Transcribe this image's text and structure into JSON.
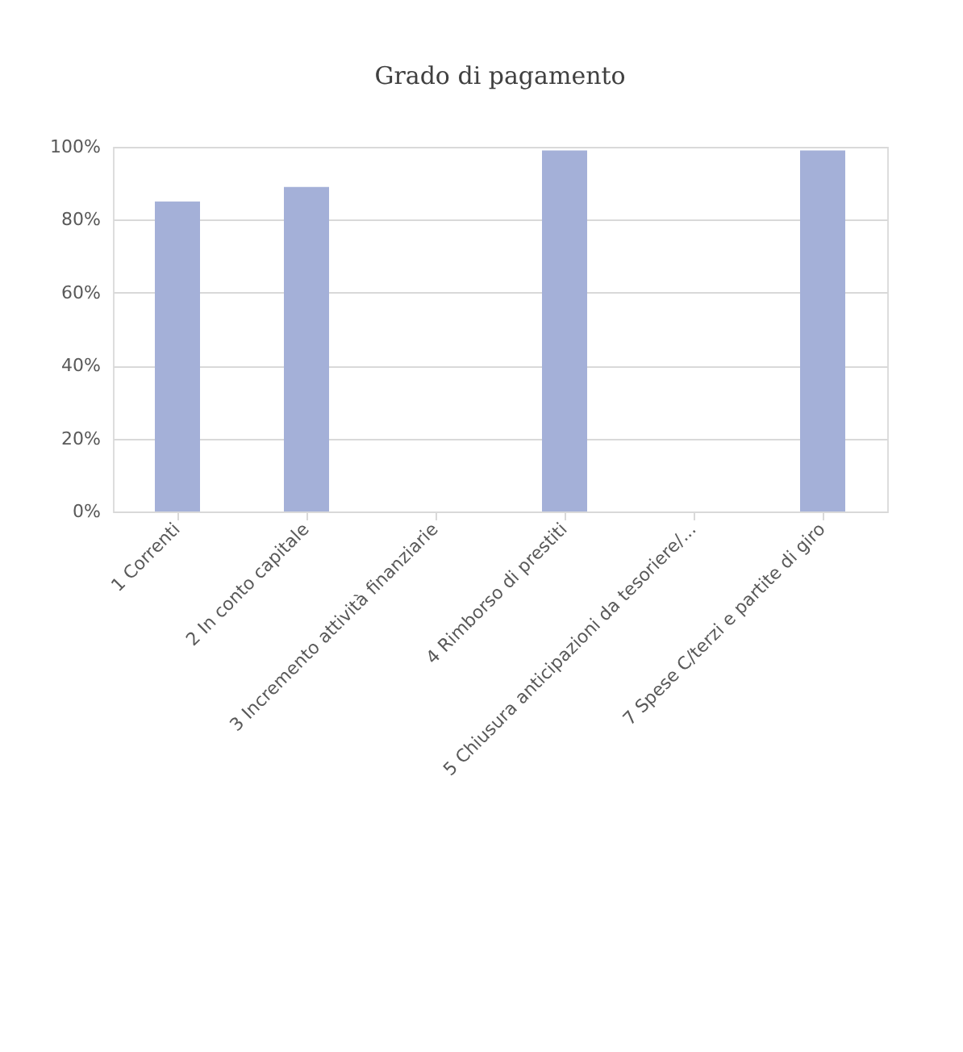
{
  "chart_data": {
    "type": "bar",
    "title": "Grado di pagamento",
    "categories": [
      "1  Correnti",
      "2  In conto capitale",
      "3  Incremento attività finanziarie",
      "4  Rimborso di prestiti",
      "5  Chiusura anticipazioni da tesoriere/...",
      "7  Spese C/terzi e partite di giro"
    ],
    "values": [
      0.85,
      0.89,
      null,
      0.99,
      null,
      0.99
    ],
    "color": "#a4b0d8",
    "ylim": [
      0,
      1
    ],
    "yticks": [
      {
        "value": 0,
        "label": "0%"
      },
      {
        "value": 0.2,
        "label": "20%"
      },
      {
        "value": 0.4,
        "label": "40%"
      },
      {
        "value": 0.6,
        "label": "60%"
      },
      {
        "value": 0.8,
        "label": "80%"
      },
      {
        "value": 1,
        "label": "100%"
      }
    ],
    "grid": "y"
  }
}
